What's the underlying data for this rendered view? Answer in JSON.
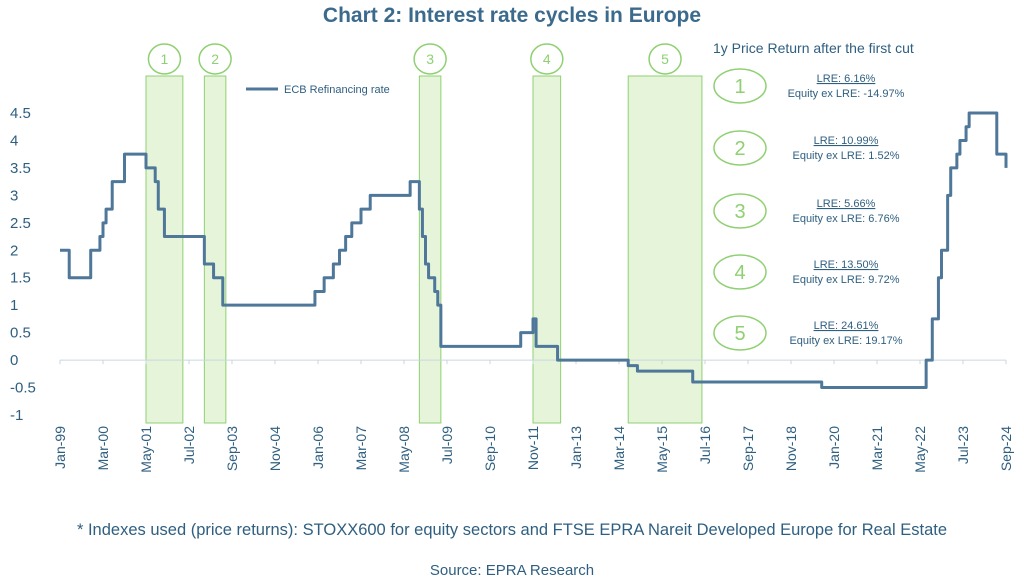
{
  "chart_data": {
    "type": "line",
    "title": "Chart 2: Interest rate cycles in Europe",
    "legend": {
      "label": "ECB Refinancing rate",
      "position": "top-left"
    },
    "ylim": [
      -1,
      4.5
    ],
    "y_ticks": [
      "4.5",
      "4",
      "3.5",
      "3",
      "2.5",
      "2",
      "1.5",
      "1",
      "0.5",
      "0",
      "-0.5",
      "-1"
    ],
    "x_ticks": [
      "Jan-99",
      "Mar-00",
      "May-01",
      "Jul-02",
      "Sep-03",
      "Nov-04",
      "Jan-06",
      "Mar-07",
      "May-08",
      "Jul-09",
      "Sep-10",
      "Nov-11",
      "Jan-13",
      "Mar-14",
      "May-15",
      "Jul-16",
      "Sep-17",
      "Nov-18",
      "Jan-20",
      "Mar-21",
      "May-22",
      "Jul-23",
      "Sep-24"
    ],
    "grid": false,
    "colors": {
      "line": "#4e7799",
      "cycle_fill": "#e6f4d9",
      "cycle_stroke": "#8fd072",
      "text": "#2f5f80"
    },
    "series": [
      {
        "name": "ECB Refinancing rate",
        "x": [
          "1999-01",
          "1999-04",
          "1999-11",
          "2000-02",
          "2000-03",
          "2000-04",
          "2000-06",
          "2000-10",
          "2001-05",
          "2001-08",
          "2001-09",
          "2001-11",
          "2002-12",
          "2003-03",
          "2003-06",
          "2005-12",
          "2006-03",
          "2006-06",
          "2006-08",
          "2006-10",
          "2006-12",
          "2007-03",
          "2007-06",
          "2008-07",
          "2008-10",
          "2008-11",
          "2008-12",
          "2009-01",
          "2009-03",
          "2009-04",
          "2009-05",
          "2011-04",
          "2011-07",
          "2011-11",
          "2011-12",
          "2012-07",
          "2014-06",
          "2014-09",
          "2016-03",
          "2019-09",
          "2022-07",
          "2022-09",
          "2022-11",
          "2022-12",
          "2023-02",
          "2023-03",
          "2023-05",
          "2023-06",
          "2023-08",
          "2023-09",
          "2024-06",
          "2024-09"
        ],
        "values": [
          2.0,
          1.5,
          2.0,
          2.25,
          2.5,
          2.75,
          3.25,
          3.75,
          3.5,
          3.25,
          2.75,
          2.25,
          1.75,
          1.5,
          1.0,
          1.25,
          1.5,
          1.75,
          2.0,
          2.25,
          2.5,
          2.75,
          3.0,
          3.25,
          2.75,
          2.25,
          1.75,
          1.5,
          1.25,
          1.0,
          0.25,
          0.25,
          0.5,
          0.75,
          0.25,
          0.0,
          -0.1,
          -0.2,
          -0.4,
          -0.5,
          0.0,
          0.75,
          1.5,
          2.0,
          3.0,
          3.5,
          3.75,
          4.0,
          4.25,
          4.5,
          3.75,
          3.5
        ]
      }
    ],
    "cycles": [
      {
        "label": "1",
        "start": "2001-05",
        "end": "2002-05",
        "lre": "LRE: 6.16%",
        "equity": "Equity ex LRE: -14.97%"
      },
      {
        "label": "2",
        "start": "2002-12",
        "end": "2003-07",
        "lre": "LRE: 10.99%",
        "equity": "Equity ex LRE: 1.52%"
      },
      {
        "label": "3",
        "start": "2008-10",
        "end": "2009-05",
        "lre": "LRE: 5.66%",
        "equity": "Equity ex LRE: 6.76%"
      },
      {
        "label": "4",
        "start": "2011-11",
        "end": "2012-08",
        "lre": "LRE: 13.50%",
        "equity": "Equity ex LRE: 9.72%"
      },
      {
        "label": "5",
        "start": "2014-06",
        "end": "2016-06",
        "lre": "LRE: 24.61%",
        "equity": "Equity ex LRE: 19.17%"
      }
    ],
    "panel_title": "1y Price Return after the first cut"
  },
  "footnote": "* Indexes used (price returns): STOXX600 for equity sectors and FTSE EPRA Nareit Developed Europe for Real Estate",
  "source": "Source: EPRA Research"
}
